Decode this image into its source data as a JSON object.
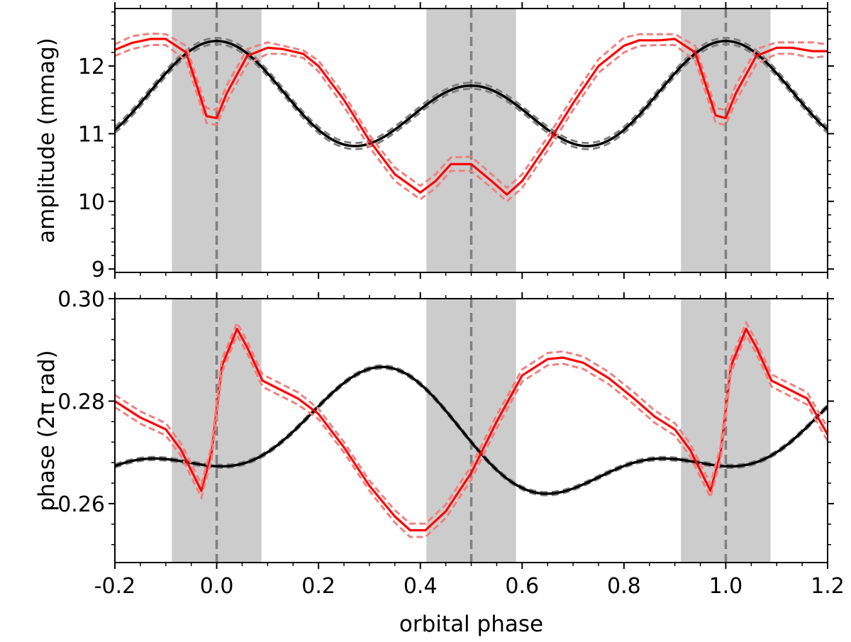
{
  "chart_data": [
    {
      "type": "line",
      "panel": "top",
      "ylabel": "amplitude (mmag)",
      "xlim": [
        -0.2,
        1.2
      ],
      "ylim": [
        8.95,
        12.85
      ],
      "yticks": [
        9,
        10,
        11,
        12
      ],
      "ytick_labels": [
        "9",
        "10",
        "11",
        "12"
      ],
      "shaded_intervals": [
        [
          -0.088,
          0.088
        ],
        [
          0.412,
          0.588
        ],
        [
          0.912,
          1.088
        ]
      ],
      "vertical_lines": [
        0.0,
        0.5,
        1.0
      ],
      "colors": {
        "observed": "#ff0000",
        "observed_band": "#f08080",
        "model": "#000000",
        "model_band": "#808080",
        "shade": "#cccccc",
        "vline": "#808080"
      },
      "series": [
        {
          "role": "observed",
          "style": "solid",
          "x": [
            -0.2,
            -0.167,
            -0.13,
            -0.1,
            -0.06,
            -0.02,
            0.0,
            0.02,
            0.06,
            0.1,
            0.13,
            0.17,
            0.2,
            0.25,
            0.3,
            0.35,
            0.4,
            0.43,
            0.46,
            0.5,
            0.54,
            0.57,
            0.6,
            0.65,
            0.7,
            0.75,
            0.8,
            0.83,
            0.87,
            0.9,
            0.94,
            0.98,
            1.0,
            1.02,
            1.06,
            1.1,
            1.13,
            1.17,
            1.2
          ],
          "y": [
            12.24,
            12.34,
            12.4,
            12.4,
            12.2,
            11.26,
            11.23,
            11.6,
            12.15,
            12.27,
            12.25,
            12.18,
            12.0,
            11.5,
            10.9,
            10.4,
            10.13,
            10.3,
            10.55,
            10.55,
            10.3,
            10.1,
            10.3,
            10.85,
            11.45,
            12.0,
            12.3,
            12.38,
            12.38,
            12.4,
            12.2,
            11.27,
            11.23,
            11.6,
            12.15,
            12.27,
            12.27,
            12.22,
            12.22
          ]
        },
        {
          "role": "observed_upper",
          "style": "dashed",
          "x": [
            -0.2,
            -0.167,
            -0.13,
            -0.1,
            -0.06,
            -0.02,
            0.0,
            0.02,
            0.06,
            0.1,
            0.13,
            0.17,
            0.2,
            0.25,
            0.3,
            0.35,
            0.4,
            0.43,
            0.46,
            0.5,
            0.54,
            0.57,
            0.6,
            0.65,
            0.7,
            0.75,
            0.8,
            0.83,
            0.87,
            0.9,
            0.94,
            0.98,
            1.0,
            1.02,
            1.06,
            1.1,
            1.13,
            1.17,
            1.2
          ],
          "y": [
            12.32,
            12.44,
            12.48,
            12.47,
            12.3,
            11.38,
            11.35,
            11.72,
            12.25,
            12.35,
            12.3,
            12.23,
            12.08,
            11.58,
            10.98,
            10.5,
            10.23,
            10.4,
            10.65,
            10.66,
            10.4,
            10.2,
            10.4,
            10.95,
            11.55,
            12.1,
            12.42,
            12.47,
            12.47,
            12.47,
            12.3,
            11.38,
            11.35,
            11.72,
            12.25,
            12.35,
            12.35,
            12.35,
            12.32
          ]
        },
        {
          "role": "observed_lower",
          "style": "dashed",
          "x": [
            -0.2,
            -0.167,
            -0.13,
            -0.1,
            -0.06,
            -0.02,
            0.0,
            0.02,
            0.06,
            0.1,
            0.13,
            0.17,
            0.2,
            0.25,
            0.3,
            0.35,
            0.4,
            0.43,
            0.46,
            0.5,
            0.54,
            0.57,
            0.6,
            0.65,
            0.7,
            0.75,
            0.8,
            0.83,
            0.87,
            0.9,
            0.94,
            0.98,
            1.0,
            1.02,
            1.06,
            1.1,
            1.13,
            1.17,
            1.2
          ],
          "y": [
            12.15,
            12.25,
            12.31,
            12.31,
            12.08,
            11.16,
            11.13,
            11.48,
            12.03,
            12.18,
            12.18,
            12.12,
            11.92,
            11.4,
            10.8,
            10.3,
            10.03,
            10.2,
            10.45,
            10.45,
            10.2,
            10.0,
            10.2,
            10.75,
            11.35,
            11.9,
            12.2,
            12.3,
            12.31,
            12.31,
            12.08,
            11.16,
            11.13,
            11.48,
            12.03,
            12.18,
            12.18,
            12.12,
            12.15
          ]
        },
        {
          "role": "model",
          "style": "solid",
          "model": "amplitude"
        },
        {
          "role": "model_band",
          "style": "dashed",
          "model": "amplitude"
        }
      ]
    },
    {
      "type": "line",
      "panel": "bottom",
      "ylabel": "phase (2π rad)",
      "xlabel": "orbital phase",
      "xlim": [
        -0.2,
        1.2
      ],
      "ylim": [
        0.2485,
        0.3
      ],
      "xticks": [
        -0.2,
        0.0,
        0.2,
        0.4,
        0.6,
        0.8,
        1.0,
        1.2
      ],
      "xtick_labels": [
        "-0.2",
        "0.0",
        "0.2",
        "0.4",
        "0.6",
        "0.8",
        "1.0",
        "1.2"
      ],
      "yticks": [
        0.26,
        0.28,
        0.3
      ],
      "ytick_labels": [
        "0.26",
        "0.28",
        "0.30"
      ],
      "shaded_intervals": [
        [
          -0.088,
          0.088
        ],
        [
          0.412,
          0.588
        ],
        [
          0.912,
          1.088
        ]
      ],
      "vertical_lines": [
        0.0,
        0.5,
        1.0
      ],
      "colors": {
        "observed": "#ff0000",
        "observed_band": "#f08080",
        "model": "#000000",
        "model_band": "#808080",
        "shade": "#cccccc",
        "vline": "#808080"
      },
      "series": [
        {
          "role": "observed",
          "style": "solid",
          "x": [
            -0.2,
            -0.15,
            -0.1,
            -0.07,
            -0.05,
            -0.03,
            -0.01,
            0.01,
            0.04,
            0.06,
            0.09,
            0.12,
            0.16,
            0.2,
            0.25,
            0.3,
            0.35,
            0.38,
            0.41,
            0.45,
            0.5,
            0.55,
            0.6,
            0.65,
            0.68,
            0.72,
            0.77,
            0.82,
            0.86,
            0.9,
            0.93,
            0.95,
            0.97,
            0.99,
            1.01,
            1.04,
            1.06,
            1.09,
            1.12,
            1.16,
            1.2
          ],
          "y": [
            0.28,
            0.2768,
            0.2745,
            0.2705,
            0.2665,
            0.2625,
            0.27,
            0.2868,
            0.2941,
            0.2905,
            0.284,
            0.2825,
            0.2805,
            0.2775,
            0.271,
            0.2635,
            0.2575,
            0.2548,
            0.2548,
            0.2585,
            0.266,
            0.276,
            0.285,
            0.2882,
            0.2885,
            0.2875,
            0.2845,
            0.2805,
            0.277,
            0.2745,
            0.2705,
            0.2665,
            0.2625,
            0.27,
            0.2868,
            0.2941,
            0.2905,
            0.284,
            0.2825,
            0.2805,
            0.2735
          ]
        },
        {
          "role": "observed_upper",
          "style": "dashed",
          "x": [
            -0.2,
            -0.15,
            -0.1,
            -0.07,
            -0.05,
            -0.03,
            -0.01,
            0.01,
            0.04,
            0.06,
            0.09,
            0.12,
            0.16,
            0.2,
            0.25,
            0.3,
            0.35,
            0.38,
            0.41,
            0.45,
            0.5,
            0.55,
            0.6,
            0.65,
            0.68,
            0.72,
            0.77,
            0.82,
            0.86,
            0.9,
            0.93,
            0.95,
            0.97,
            0.99,
            1.01,
            1.04,
            1.06,
            1.09,
            1.12,
            1.16,
            1.2
          ],
          "y": [
            0.2812,
            0.278,
            0.2757,
            0.2717,
            0.2678,
            0.2638,
            0.2713,
            0.2881,
            0.2953,
            0.2917,
            0.2852,
            0.2837,
            0.2817,
            0.2785,
            0.272,
            0.2645,
            0.2587,
            0.2561,
            0.2561,
            0.2598,
            0.2673,
            0.2773,
            0.2862,
            0.2894,
            0.2897,
            0.2887,
            0.2857,
            0.2817,
            0.2782,
            0.2757,
            0.2717,
            0.2678,
            0.2638,
            0.2713,
            0.2881,
            0.2953,
            0.2917,
            0.2852,
            0.2837,
            0.2817,
            0.2748
          ]
        },
        {
          "role": "observed_lower",
          "style": "dashed",
          "x": [
            -0.2,
            -0.15,
            -0.1,
            -0.07,
            -0.05,
            -0.03,
            -0.01,
            0.01,
            0.04,
            0.06,
            0.09,
            0.12,
            0.16,
            0.2,
            0.25,
            0.3,
            0.35,
            0.38,
            0.41,
            0.45,
            0.5,
            0.55,
            0.6,
            0.65,
            0.68,
            0.72,
            0.77,
            0.82,
            0.86,
            0.9,
            0.93,
            0.95,
            0.97,
            0.99,
            1.01,
            1.04,
            1.06,
            1.09,
            1.12,
            1.16,
            1.2
          ],
          "y": [
            0.2788,
            0.2756,
            0.2733,
            0.2693,
            0.2652,
            0.2612,
            0.2687,
            0.2855,
            0.2929,
            0.2893,
            0.2828,
            0.2813,
            0.2793,
            0.2765,
            0.27,
            0.2625,
            0.2563,
            0.2535,
            0.2535,
            0.2572,
            0.2647,
            0.2747,
            0.2838,
            0.287,
            0.2873,
            0.2863,
            0.2833,
            0.2793,
            0.2758,
            0.2733,
            0.2693,
            0.2652,
            0.2612,
            0.2687,
            0.2855,
            0.2929,
            0.2893,
            0.2828,
            0.2813,
            0.2793,
            0.2722
          ]
        },
        {
          "role": "model",
          "style": "solid",
          "model": "phase"
        },
        {
          "role": "model_band",
          "style": "dashed",
          "model": "phase"
        }
      ]
    }
  ]
}
